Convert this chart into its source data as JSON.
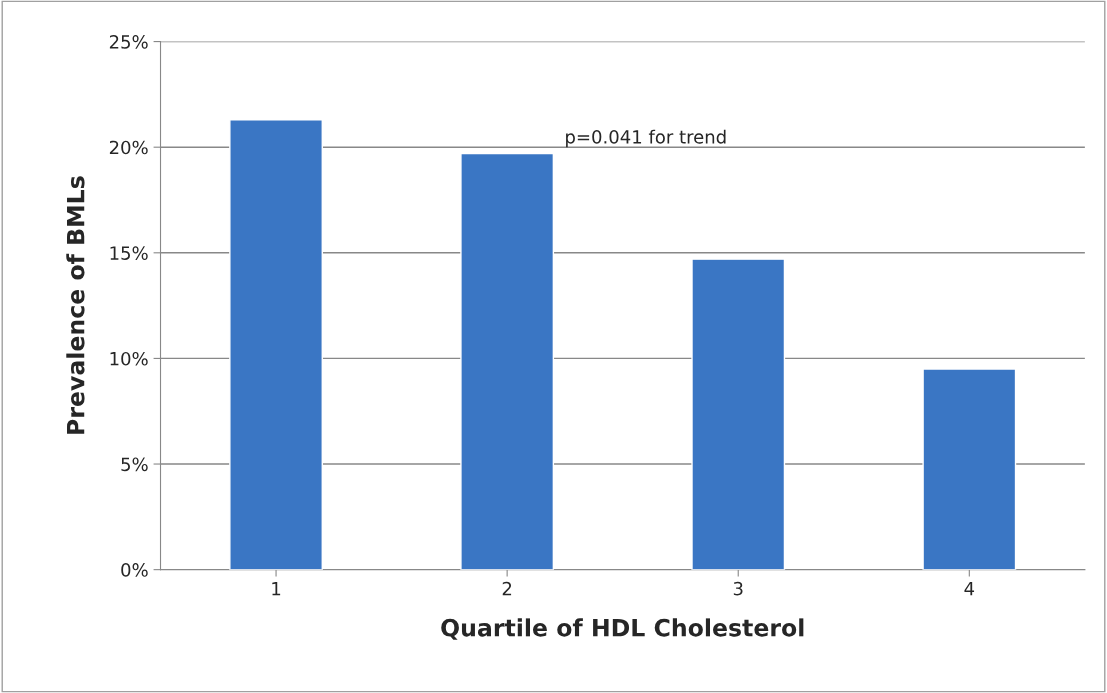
{
  "chart_data": {
    "type": "bar",
    "xlabel": "Quartile of HDL Cholesterol",
    "ylabel": "Prevalence of BMLs",
    "categories": [
      "1",
      "2",
      "3",
      "4"
    ],
    "values": [
      21.3,
      19.7,
      14.7,
      9.5
    ],
    "color": "#3a76c4",
    "ylim": [
      0,
      25
    ],
    "yticks": [
      {
        "value": 0,
        "label": "0%"
      },
      {
        "value": 5,
        "label": "5%"
      },
      {
        "value": 10,
        "label": "10%"
      },
      {
        "value": 15,
        "label": "15%"
      },
      {
        "value": 20,
        "label": "20%"
      },
      {
        "value": 25,
        "label": "25%"
      }
    ],
    "grid": "y",
    "annotations": [
      "p=0.041 for trend"
    ]
  }
}
